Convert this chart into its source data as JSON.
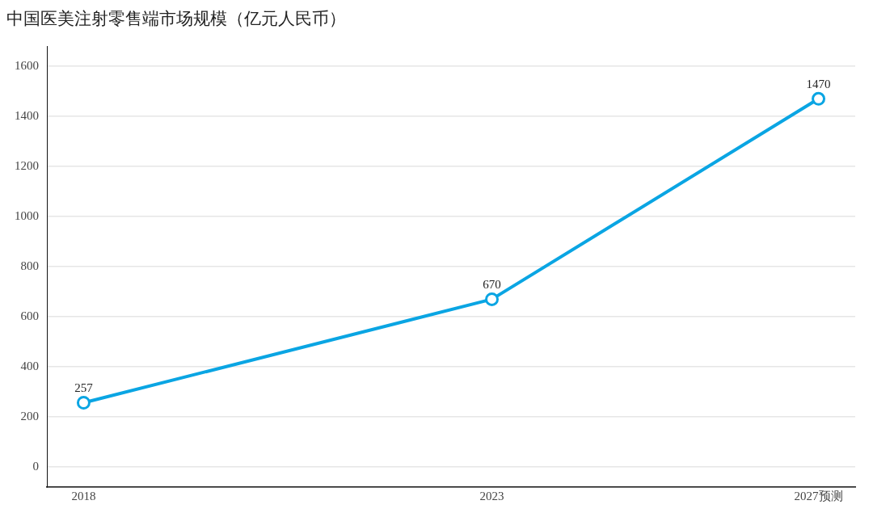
{
  "chart_data": {
    "type": "line",
    "title": "中国医美注射零售端市场规模（亿元人民币）",
    "x": [
      2018,
      2023,
      2027
    ],
    "series": [
      {
        "color": "#0aa5e3",
        "values": [
          257,
          670,
          1470
        ]
      }
    ],
    "xlim": [
      2017.55,
      2027.45
    ],
    "xticks": [
      2018,
      2023,
      {
        "value": 2027,
        "label": "2027预测"
      }
    ],
    "ylim": [
      -80,
      1680
    ],
    "yticks": [
      0,
      200,
      400,
      600,
      800,
      1000,
      1200,
      1400,
      1600
    ],
    "grid": "y",
    "legend": false,
    "marker": "circle",
    "line_style": "solid",
    "data_labels": true
  }
}
